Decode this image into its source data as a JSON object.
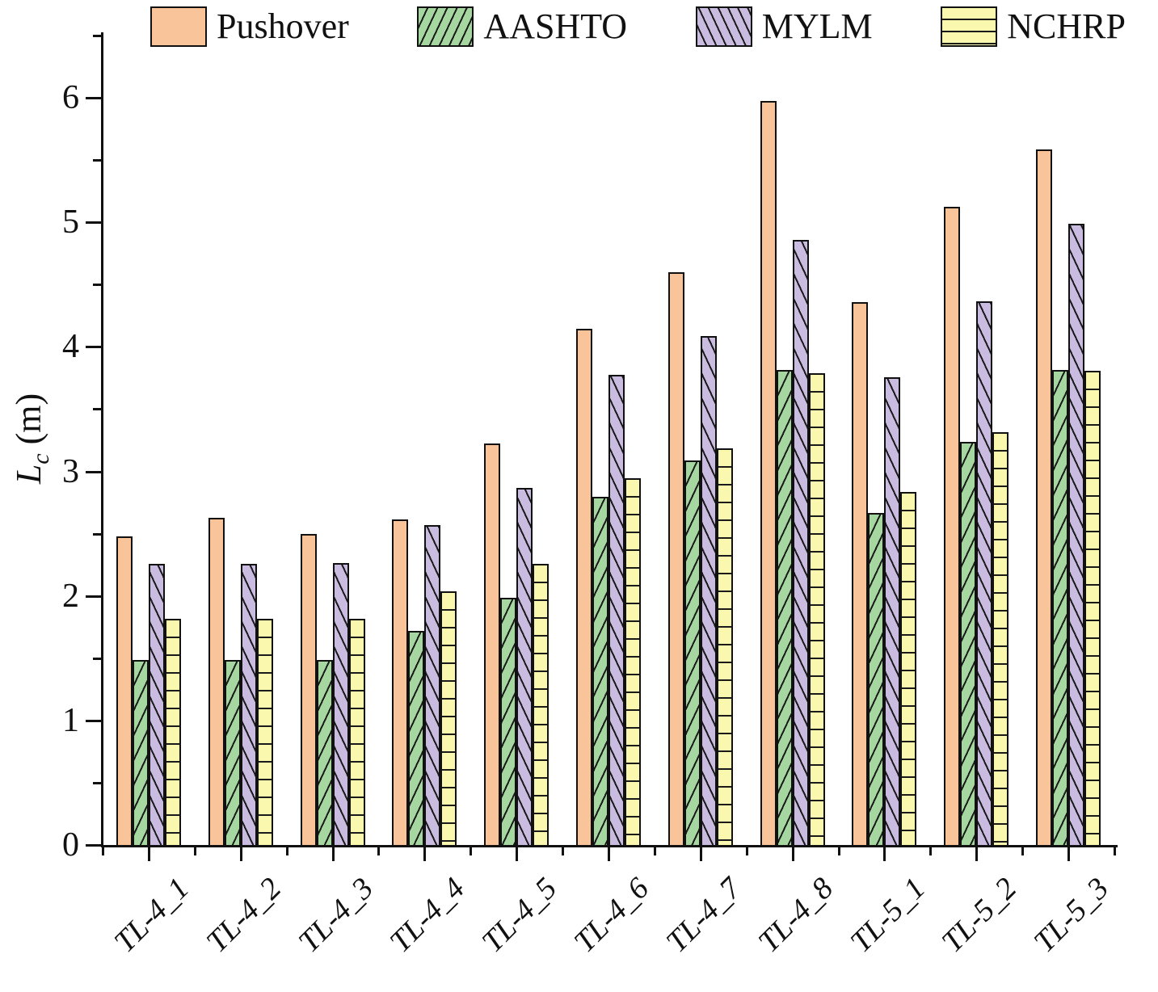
{
  "figure": {
    "y_axis_title": {
      "main": "L",
      "sub": "c",
      "unit": " (m)"
    }
  },
  "chart_data": {
    "type": "bar",
    "title": "",
    "xlabel": "",
    "ylabel": "Lc (m)",
    "legend_position": "top",
    "grid": false,
    "ylim": [
      0,
      6.5
    ],
    "yticks": [
      0,
      1,
      2,
      3,
      4,
      5,
      6
    ],
    "y_minor_ticks": [
      0.5,
      1.5,
      2.5,
      3.5,
      4.5,
      5.5,
      6.5
    ],
    "categories": [
      "TL-4_1",
      "TL-4_2",
      "TL-4_3",
      "TL-4_4",
      "TL-4_5",
      "TL-4_6",
      "TL-4_7",
      "TL-4_8",
      "TL-5_1",
      "TL-5_2",
      "TL-5_3"
    ],
    "series": [
      {
        "name": "Pushover",
        "color": "#F9C49A",
        "hatch": "none",
        "values": [
          2.49,
          2.64,
          2.51,
          2.63,
          3.24,
          4.16,
          4.61,
          5.99,
          4.37,
          5.14,
          5.6
        ]
      },
      {
        "name": "AASHTO",
        "color": "#A6D7A0",
        "hatch": "diag-up",
        "values": [
          1.5,
          1.5,
          1.5,
          1.73,
          2.0,
          2.81,
          3.1,
          3.83,
          2.68,
          3.25,
          3.83
        ]
      },
      {
        "name": "MYLM",
        "color": "#C9BCE0",
        "hatch": "diag-down",
        "values": [
          2.27,
          2.27,
          2.28,
          2.58,
          2.88,
          3.79,
          4.1,
          4.87,
          3.77,
          4.38,
          5.0
        ]
      },
      {
        "name": "NCHRP",
        "color": "#FAF7AF",
        "hatch": "horizontal",
        "values": [
          1.83,
          1.83,
          1.83,
          2.05,
          2.27,
          2.96,
          3.2,
          3.8,
          2.85,
          3.33,
          3.82
        ]
      }
    ]
  }
}
